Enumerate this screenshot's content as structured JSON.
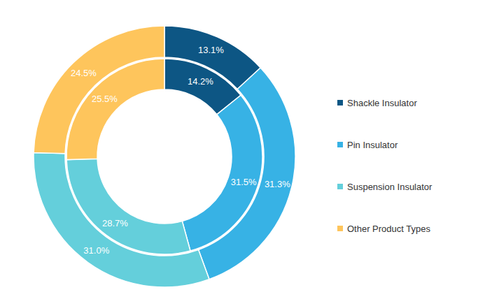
{
  "chart_data": {
    "type": "pie",
    "categories": [
      "Shackle Insulator",
      "Pin Insulator",
      "Suspension Insulator",
      "Other Product Types"
    ],
    "colors": [
      "#0d5684",
      "#37b2e5",
      "#64cfdb",
      "#fec55c"
    ],
    "series": [
      {
        "values": [
          13.1,
          31.3,
          31.0,
          24.5
        ],
        "value_labels": [
          "13.1%",
          "31.3%",
          "31.0%",
          "24.5%"
        ]
      },
      {
        "values": [
          14.2,
          31.5,
          28.7,
          25.5
        ],
        "value_labels": [
          "14.2%",
          "31.5%",
          "28.7%",
          "25.5%"
        ]
      }
    ],
    "data_labels": true,
    "legend": "right"
  }
}
